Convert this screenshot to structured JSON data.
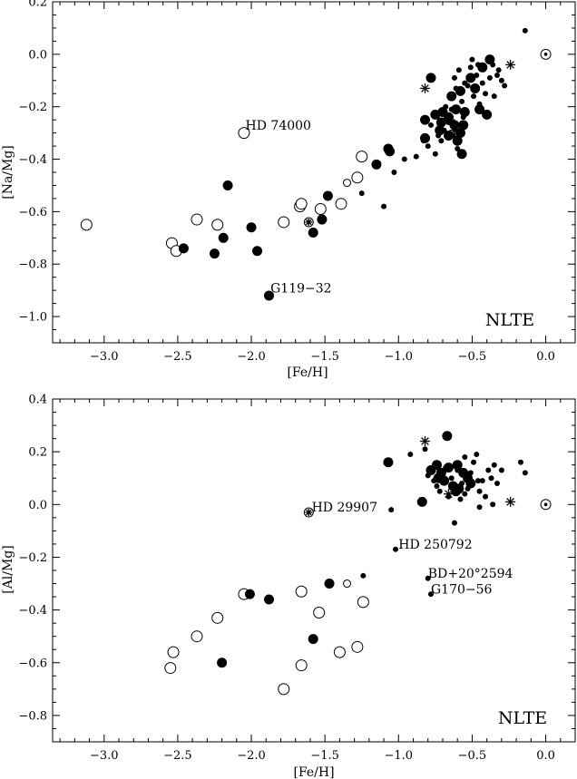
{
  "chart_data": [
    {
      "type": "scatter",
      "panel": "top",
      "xlabel": "[Fe/H]",
      "ylabel": "[Na/Mg]",
      "regime": "NLTE",
      "xlim": [
        -3.35,
        0.2
      ],
      "ylim": [
        -1.1,
        0.2
      ],
      "xticks": [
        -3.0,
        -2.5,
        -2.0,
        -1.5,
        -1.0,
        -0.5,
        0.0
      ],
      "xtick_labels": [
        "−3.0",
        "−2.5",
        "−2.0",
        "−1.5",
        "−1.0",
        "−0.5",
        "0.0"
      ],
      "yticks": [
        0.2,
        0.0,
        -0.2,
        -0.4,
        -0.6,
        -0.8,
        -1.0
      ],
      "ytick_labels": [
        "0.2",
        "0.0",
        "−0.2",
        "−0.4",
        "−0.6",
        "−0.8",
        "−1.0"
      ],
      "annotations": [
        {
          "text": "HD 74000",
          "x": -2.04,
          "y": -0.27
        },
        {
          "text": "G119−32",
          "x": -1.87,
          "y": -0.89
        }
      ],
      "sun": {
        "x": 0.0,
        "y": 0.0
      },
      "series": [
        {
          "marker": "open-circle",
          "size": "large",
          "points": [
            [
              -3.12,
              -0.65
            ],
            [
              -2.54,
              -0.72
            ],
            [
              -2.51,
              -0.75
            ],
            [
              -2.37,
              -0.63
            ],
            [
              -2.23,
              -0.65
            ],
            [
              -2.05,
              -0.3
            ],
            [
              -1.78,
              -0.64
            ],
            [
              -1.67,
              -0.58
            ],
            [
              -1.66,
              -0.57
            ],
            [
              -1.53,
              -0.59
            ],
            [
              -1.39,
              -0.57
            ],
            [
              -1.28,
              -0.47
            ],
            [
              -1.25,
              -0.39
            ]
          ]
        },
        {
          "marker": "open-circle",
          "size": "small",
          "points": [
            [
              -1.35,
              -0.49
            ]
          ]
        },
        {
          "marker": "filled-circle",
          "size": "large",
          "points": [
            [
              -2.46,
              -0.74
            ],
            [
              -2.25,
              -0.76
            ],
            [
              -2.19,
              -0.7
            ],
            [
              -2.16,
              -0.5
            ],
            [
              -2.0,
              -0.66
            ],
            [
              -1.96,
              -0.75
            ],
            [
              -1.88,
              -0.92
            ],
            [
              -1.58,
              -0.68
            ],
            [
              -1.52,
              -0.63
            ],
            [
              -1.48,
              -0.54
            ],
            [
              -1.15,
              -0.42
            ],
            [
              -1.07,
              -0.36
            ],
            [
              -1.06,
              -0.37
            ],
            [
              -0.82,
              -0.32
            ],
            [
              -0.82,
              -0.25
            ],
            [
              -0.78,
              -0.09
            ],
            [
              -0.75,
              -0.23
            ],
            [
              -0.72,
              -0.29
            ],
            [
              -0.71,
              -0.26
            ],
            [
              -0.7,
              -0.22
            ],
            [
              -0.66,
              -0.31
            ],
            [
              -0.64,
              -0.16
            ],
            [
              -0.62,
              -0.27
            ],
            [
              -0.61,
              -0.21
            ],
            [
              -0.6,
              -0.33
            ],
            [
              -0.58,
              -0.14
            ],
            [
              -0.58,
              -0.3
            ],
            [
              -0.57,
              -0.38
            ],
            [
              -0.55,
              -0.22
            ],
            [
              -0.51,
              -0.09
            ],
            [
              -0.48,
              -0.13
            ],
            [
              -0.45,
              -0.21
            ],
            [
              -0.43,
              -0.05
            ],
            [
              -0.4,
              -0.23
            ],
            [
              -0.38,
              -0.02
            ],
            [
              -0.66,
              -0.24
            ],
            [
              -0.56,
              -0.27
            ]
          ]
        },
        {
          "marker": "filled-circle",
          "size": "small",
          "points": [
            [
              -1.25,
              -0.53
            ],
            [
              -1.1,
              -0.58
            ],
            [
              -1.03,
              -0.45
            ],
            [
              -0.96,
              -0.4
            ],
            [
              -0.88,
              -0.39
            ],
            [
              -0.83,
              -0.33
            ],
            [
              -0.8,
              -0.35
            ],
            [
              -0.78,
              -0.27
            ],
            [
              -0.75,
              -0.38
            ],
            [
              -0.73,
              -0.31
            ],
            [
              -0.68,
              -0.2
            ],
            [
              -0.66,
              -0.26
            ],
            [
              -0.64,
              -0.21
            ],
            [
              -0.62,
              -0.09
            ],
            [
              -0.6,
              -0.36
            ],
            [
              -0.59,
              -0.06
            ],
            [
              -0.57,
              -0.18
            ],
            [
              -0.55,
              -0.11
            ],
            [
              -0.53,
              -0.12
            ],
            [
              -0.51,
              -0.05
            ],
            [
              -0.49,
              -0.16
            ],
            [
              -0.47,
              -0.08
            ],
            [
              -0.45,
              -0.19
            ],
            [
              -0.43,
              -0.11
            ],
            [
              -0.41,
              -0.15
            ],
            [
              -0.38,
              -0.09
            ],
            [
              -0.36,
              -0.04
            ],
            [
              -0.35,
              -0.16
            ],
            [
              -0.32,
              -0.06
            ],
            [
              -0.3,
              -0.1
            ],
            [
              -0.28,
              -0.12
            ],
            [
              -0.33,
              -0.08
            ],
            [
              -0.14,
              0.09
            ],
            [
              -0.69,
              -0.29
            ],
            [
              -0.63,
              -0.31
            ],
            [
              -0.56,
              -0.24
            ],
            [
              -0.71,
              -0.33
            ],
            [
              -0.61,
              -0.13
            ],
            [
              -0.5,
              -0.02
            ],
            [
              -0.46,
              -0.04
            ]
          ]
        },
        {
          "marker": "asterisk",
          "size": "normal",
          "points": [
            [
              -0.82,
              -0.13
            ],
            [
              -0.65,
              -0.25
            ],
            [
              -0.62,
              -0.29
            ],
            [
              -0.24,
              -0.04
            ]
          ]
        },
        {
          "marker": "starred-circle",
          "size": "normal",
          "points": [
            [
              -1.61,
              -0.64
            ]
          ]
        }
      ]
    },
    {
      "type": "scatter",
      "panel": "bottom",
      "xlabel": "[Fe/H]",
      "ylabel": "[Al/Mg]",
      "regime": "NLTE",
      "xlim": [
        -3.35,
        0.2
      ],
      "ylim": [
        -0.9,
        0.4
      ],
      "xticks": [
        -3.0,
        -2.5,
        -2.0,
        -1.5,
        -1.0,
        -0.5,
        0.0
      ],
      "xtick_labels": [
        "−3.0",
        "−2.5",
        "−2.0",
        "−1.5",
        "−1.0",
        "−0.5",
        "0.0"
      ],
      "yticks": [
        0.4,
        0.2,
        0.0,
        -0.2,
        -0.4,
        -0.6,
        -0.8
      ],
      "ytick_labels": [
        "0.4",
        "0.2",
        "0.0",
        "−0.2",
        "−0.4",
        "−0.6",
        "−0.8"
      ],
      "annotations": [
        {
          "text": "HD 29907",
          "x": -1.59,
          "y": -0.01
        },
        {
          "text": "HD 250792",
          "x": -1.0,
          "y": -0.15
        },
        {
          "text": "BD+20°2594",
          "x": -0.8,
          "y": -0.26
        },
        {
          "text": "G170−56",
          "x": -0.78,
          "y": -0.32
        }
      ],
      "sun": {
        "x": 0.0,
        "y": 0.0
      },
      "series": [
        {
          "marker": "open-circle",
          "size": "large",
          "points": [
            [
              -2.55,
              -0.62
            ],
            [
              -2.53,
              -0.56
            ],
            [
              -2.37,
              -0.5
            ],
            [
              -2.23,
              -0.43
            ],
            [
              -2.05,
              -0.34
            ],
            [
              -1.78,
              -0.7
            ],
            [
              -1.66,
              -0.33
            ],
            [
              -1.66,
              -0.61
            ],
            [
              -1.54,
              -0.41
            ],
            [
              -1.4,
              -0.56
            ],
            [
              -1.28,
              -0.54
            ],
            [
              -1.24,
              -0.37
            ]
          ]
        },
        {
          "marker": "open-circle",
          "size": "small",
          "points": [
            [
              -1.35,
              -0.3
            ]
          ]
        },
        {
          "marker": "filled-circle",
          "size": "large",
          "points": [
            [
              -2.2,
              -0.6
            ],
            [
              -2.01,
              -0.34
            ],
            [
              -1.88,
              -0.36
            ],
            [
              -1.58,
              -0.51
            ],
            [
              -1.47,
              -0.3
            ],
            [
              -1.07,
              0.16
            ],
            [
              -0.78,
              0.13
            ],
            [
              -0.74,
              0.15
            ],
            [
              -0.71,
              0.12
            ],
            [
              -0.69,
              0.09
            ],
            [
              -0.66,
              0.14
            ],
            [
              -0.63,
              0.07
            ],
            [
              -0.61,
              0.05
            ],
            [
              -0.59,
              0.06
            ],
            [
              -0.56,
              0.12
            ],
            [
              -0.53,
              0.1
            ],
            [
              -0.51,
              0.08
            ],
            [
              -0.67,
              0.26
            ],
            [
              -0.84,
              0.01
            ],
            [
              -0.6,
              0.15
            ],
            [
              -0.73,
              0.1
            ]
          ]
        },
        {
          "marker": "filled-circle",
          "size": "small",
          "points": [
            [
              -1.24,
              -0.27
            ],
            [
              -1.05,
              -0.02
            ],
            [
              -1.02,
              -0.17
            ],
            [
              -0.92,
              0.19
            ],
            [
              -0.82,
              0.21
            ],
            [
              -0.8,
              -0.28
            ],
            [
              -0.78,
              -0.34
            ],
            [
              -0.8,
              0.11
            ],
            [
              -0.76,
              0.09
            ],
            [
              -0.74,
              0.07
            ],
            [
              -0.72,
              0.05
            ],
            [
              -0.7,
              0.11
            ],
            [
              -0.68,
              0.14
            ],
            [
              -0.66,
              0.03
            ],
            [
              -0.64,
              0.1
            ],
            [
              -0.62,
              -0.07
            ],
            [
              -0.6,
              0.13
            ],
            [
              -0.57,
              0.08
            ],
            [
              -0.55,
              0.04
            ],
            [
              -0.53,
              0.06
            ],
            [
              -0.51,
              0.12
            ],
            [
              -0.49,
              0.16
            ],
            [
              -0.47,
              0.19
            ],
            [
              -0.45,
              0.05
            ],
            [
              -0.43,
              0.09
            ],
            [
              -0.41,
              0.03
            ],
            [
              -0.39,
              0.13
            ],
            [
              -0.37,
              0.1
            ],
            [
              -0.35,
              0.15
            ],
            [
              -0.33,
              0.08
            ],
            [
              -0.45,
              -0.01
            ],
            [
              -0.17,
              0.16
            ],
            [
              -0.14,
              0.12
            ],
            [
              -0.3,
              0.13
            ],
            [
              -0.36,
              0.0
            ],
            [
              -0.58,
              0.02
            ],
            [
              -0.55,
              0.18
            ],
            [
              -0.46,
              0.09
            ]
          ]
        },
        {
          "marker": "asterisk",
          "size": "normal",
          "points": [
            [
              -0.82,
              0.24
            ],
            [
              -0.66,
              0.04
            ],
            [
              -0.24,
              0.01
            ]
          ]
        },
        {
          "marker": "starred-circle",
          "size": "normal",
          "points": [
            [
              -1.61,
              -0.03
            ]
          ]
        }
      ]
    }
  ]
}
